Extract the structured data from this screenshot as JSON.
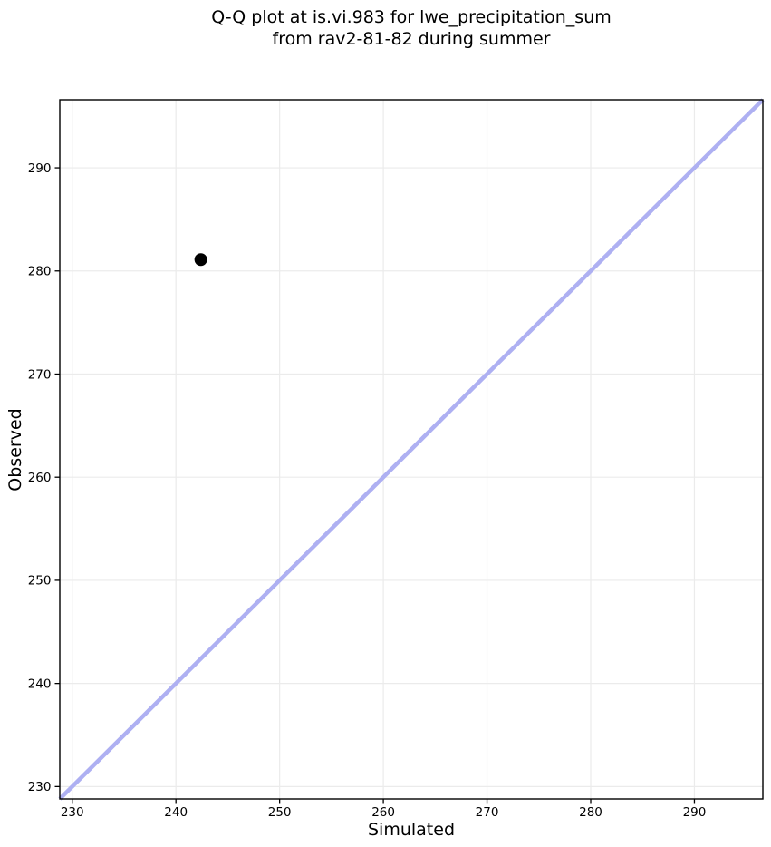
{
  "title": {
    "line1": "Q-Q plot at is.vi.983 for lwe_precipitation_sum",
    "line2": "from rav2-81-82 during summer"
  },
  "chart_data": {
    "type": "scatter",
    "title": "Q-Q plot at is.vi.983 for lwe_precipitation_sum\nfrom rav2-81-82 during summer",
    "xlabel": "Simulated",
    "ylabel": "Observed",
    "xlim": [
      228.8,
      296.6
    ],
    "ylim": [
      228.8,
      296.6
    ],
    "xticks": [
      230,
      240,
      250,
      260,
      270,
      280,
      290
    ],
    "yticks": [
      230,
      240,
      250,
      260,
      270,
      280,
      290
    ],
    "grid": true,
    "legend": false,
    "colors": {
      "point": "#000000",
      "identity_line": "#aeb0f2",
      "grid": "#ebebeb",
      "axis": "#000000",
      "tick_label": "#000000",
      "background": "#ffffff"
    },
    "series": [
      {
        "name": "observed-vs-simulated-quantiles",
        "type": "scatter",
        "points": [
          {
            "x": 242.4,
            "y": 281.1
          }
        ]
      },
      {
        "name": "identity-line-y-equals-x",
        "type": "line",
        "points": [
          {
            "x": 228.8,
            "y": 228.8
          },
          {
            "x": 296.6,
            "y": 296.6
          }
        ]
      }
    ]
  }
}
